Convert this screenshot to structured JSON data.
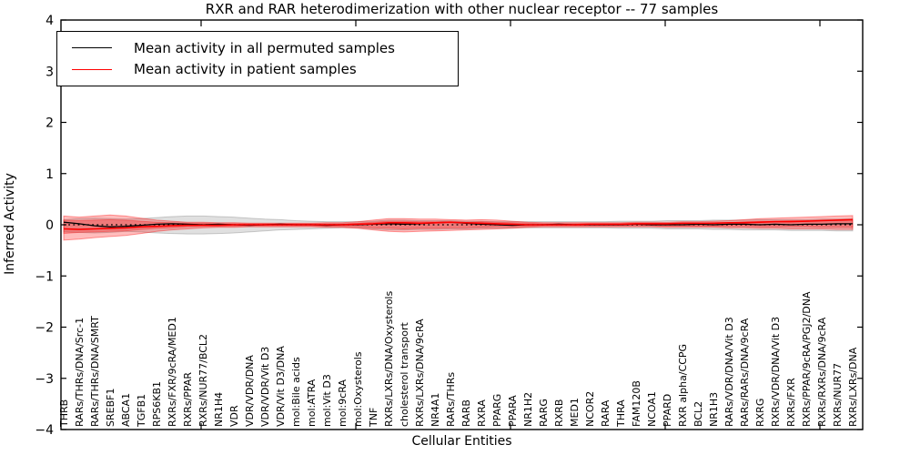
{
  "figure": {
    "title": "RXR and RAR heterodimerization with other nuclear receptor -- 77 samples"
  },
  "legend": {
    "items": [
      {
        "label": "Mean activity in all permuted samples",
        "color": "#000000"
      },
      {
        "label": "Mean activity in patient samples",
        "color": "#ff0000"
      }
    ]
  },
  "chart_data": {
    "type": "line",
    "title": "RXR and RAR heterodimerization with other nuclear receptor -- 77 samples",
    "xlabel": "Cellular Entities",
    "ylabel": "Inferred Activity",
    "ylim": [
      -4,
      4
    ],
    "yticks": [
      4,
      3,
      2,
      1,
      0,
      -1,
      -2,
      -3,
      -4
    ],
    "grid": false,
    "legend_position": "upper left",
    "categories": [
      "THRB",
      "RARs/THRs/DNA/Src-1",
      "RARs/THRs/DNA/SMRT",
      "SREBF1",
      "ABCA1",
      "TGFB1",
      "RPS6KB1",
      "RXRs/FXR/9cRA/MED1",
      "RXRs/PPAR",
      "RXRs/NUR77/BCL2",
      "NR1H4",
      "VDR",
      "VDR/VDR/DNA",
      "VDR/VDR/Vit D3",
      "VDR/Vit D3/DNA",
      "mol:Bile acids",
      "mol:ATRA",
      "mol:Vit D3",
      "mol:9cRA",
      "mol:Oxysterols",
      "TNF",
      "RXRs/LXRs/DNA/Oxysterols",
      "cholesterol transport",
      "RXRs/LXRs/DNA/9cRA",
      "NR4A1",
      "RARs/THRs",
      "RARB",
      "RXRA",
      "PPARG",
      "PPARA",
      "NR1H2",
      "RARG",
      "RXRB",
      "MED1",
      "NCOR2",
      "RARA",
      "THRA",
      "FAM120B",
      "NCOA1",
      "PPARD",
      "RXR alpha/CCPG",
      "BCL2",
      "NR1H3",
      "RARs/VDR/DNA/Vit D3",
      "RARs/RARs/DNA/9cRA",
      "RXRG",
      "RXRs/VDR/DNA/Vit D3",
      "RXRs/FXR",
      "RXRs/PPAR/9cRA/PGJ2/DNA",
      "RXRs/RXRs/DNA/9cRA",
      "RXRs/NUR77",
      "RXRs/LXRs/DNA"
    ],
    "series": [
      {
        "name": "Mean activity in all permuted samples",
        "color": "#000000",
        "style": "solid",
        "values": [
          0.05,
          0.02,
          -0.02,
          -0.04,
          -0.03,
          -0.01,
          0.01,
          0.02,
          0.01,
          0.0,
          0.01,
          0.0,
          -0.01,
          0.0,
          0.01,
          0.0,
          0.0,
          -0.01,
          0.0,
          0.0,
          0.01,
          0.02,
          0.01,
          0.02,
          0.04,
          0.05,
          0.03,
          0.01,
          0.0,
          -0.01,
          0.0,
          0.0,
          0.01,
          0.0,
          0.0,
          0.0,
          0.0,
          0.01,
          0.0,
          0.0,
          0.0,
          0.01,
          0.0,
          0.01,
          0.01,
          0.0,
          0.01,
          0.0,
          0.01,
          0.01,
          0.02,
          0.02
        ]
      },
      {
        "name": "Mean activity in patient samples",
        "color": "#ff0000",
        "style": "solid",
        "values": [
          -0.08,
          -0.09,
          -0.08,
          -0.07,
          -0.06,
          -0.04,
          -0.03,
          -0.02,
          -0.01,
          -0.01,
          -0.01,
          0.0,
          0.0,
          0.0,
          0.0,
          0.0,
          0.0,
          0.0,
          0.0,
          0.01,
          0.02,
          0.04,
          0.04,
          0.03,
          0.04,
          0.05,
          0.04,
          0.03,
          0.02,
          0.01,
          0.0,
          0.0,
          0.0,
          0.0,
          0.01,
          0.01,
          0.01,
          0.02,
          0.02,
          0.02,
          0.03,
          0.03,
          0.03,
          0.04,
          0.04,
          0.05,
          0.06,
          0.06,
          0.07,
          0.08,
          0.09,
          0.1
        ]
      }
    ],
    "reference_line": {
      "y": 0,
      "style": "dotted",
      "color": "#000000"
    },
    "bands": [
      {
        "name": "permuted-range",
        "fill": "rgba(0,0,0,0.12)",
        "edge": "rgba(0,0,0,0.18)",
        "hi": [
          0.1,
          0.12,
          0.13,
          0.12,
          0.11,
          0.12,
          0.14,
          0.16,
          0.17,
          0.17,
          0.16,
          0.15,
          0.13,
          0.11,
          0.1,
          0.08,
          0.07,
          0.06,
          0.06,
          0.06,
          0.07,
          0.09,
          0.09,
          0.08,
          0.08,
          0.08,
          0.07,
          0.07,
          0.06,
          0.06,
          0.06,
          0.06,
          0.06,
          0.06,
          0.06,
          0.06,
          0.07,
          0.07,
          0.07,
          0.08,
          0.08,
          0.08,
          0.09,
          0.09,
          0.09,
          0.1,
          0.1,
          0.1,
          0.1,
          0.11,
          0.11,
          0.12
        ],
        "lo": [
          -0.14,
          -0.15,
          -0.16,
          -0.15,
          -0.13,
          -0.14,
          -0.16,
          -0.17,
          -0.18,
          -0.18,
          -0.17,
          -0.16,
          -0.14,
          -0.12,
          -0.1,
          -0.09,
          -0.08,
          -0.07,
          -0.06,
          -0.06,
          -0.08,
          -0.1,
          -0.1,
          -0.09,
          -0.09,
          -0.08,
          -0.08,
          -0.07,
          -0.07,
          -0.06,
          -0.06,
          -0.06,
          -0.06,
          -0.06,
          -0.06,
          -0.06,
          -0.07,
          -0.07,
          -0.07,
          -0.08,
          -0.08,
          -0.08,
          -0.09,
          -0.09,
          -0.1,
          -0.1,
          -0.1,
          -0.11,
          -0.11,
          -0.11,
          -0.12,
          -0.12
        ]
      },
      {
        "name": "patient-range",
        "fill": "rgba(255,0,0,0.26)",
        "edge": "rgba(255,0,0,0.38)",
        "hi": [
          0.17,
          0.15,
          0.17,
          0.19,
          0.17,
          0.13,
          0.09,
          0.07,
          0.05,
          0.05,
          0.04,
          0.04,
          0.03,
          0.03,
          0.03,
          0.03,
          0.03,
          0.04,
          0.04,
          0.06,
          0.09,
          0.12,
          0.12,
          0.11,
          0.11,
          0.1,
          0.09,
          0.1,
          0.09,
          0.07,
          0.05,
          0.04,
          0.04,
          0.04,
          0.04,
          0.04,
          0.04,
          0.05,
          0.05,
          0.05,
          0.06,
          0.06,
          0.07,
          0.08,
          0.1,
          0.12,
          0.13,
          0.14,
          0.15,
          0.16,
          0.17,
          0.18
        ],
        "lo": [
          -0.3,
          -0.28,
          -0.25,
          -0.23,
          -0.21,
          -0.17,
          -0.13,
          -0.1,
          -0.08,
          -0.06,
          -0.05,
          -0.05,
          -0.04,
          -0.04,
          -0.04,
          -0.04,
          -0.04,
          -0.05,
          -0.05,
          -0.07,
          -0.1,
          -0.13,
          -0.14,
          -0.13,
          -0.12,
          -0.11,
          -0.1,
          -0.09,
          -0.08,
          -0.07,
          -0.05,
          -0.04,
          -0.04,
          -0.04,
          -0.04,
          -0.04,
          -0.04,
          -0.04,
          -0.04,
          -0.05,
          -0.05,
          -0.05,
          -0.05,
          -0.06,
          -0.06,
          -0.07,
          -0.07,
          -0.08,
          -0.08,
          -0.08,
          -0.09,
          -0.09
        ]
      },
      {
        "name": "patient-range-inner",
        "fill": "rgba(255,0,0,0.26)",
        "edge": "rgba(255,0,0,0.30)",
        "hi": [
          0.09,
          0.08,
          0.09,
          0.1,
          0.09,
          0.07,
          0.05,
          0.04,
          0.03,
          0.03,
          0.02,
          0.02,
          0.02,
          0.02,
          0.02,
          0.02,
          0.02,
          0.02,
          0.02,
          0.03,
          0.05,
          0.07,
          0.07,
          0.06,
          0.06,
          0.06,
          0.05,
          0.06,
          0.05,
          0.04,
          0.03,
          0.02,
          0.02,
          0.02,
          0.02,
          0.02,
          0.02,
          0.03,
          0.03,
          0.03,
          0.03,
          0.03,
          0.04,
          0.04,
          0.06,
          0.07,
          0.07,
          0.08,
          0.08,
          0.09,
          0.09,
          0.1
        ],
        "lo": [
          -0.17,
          -0.15,
          -0.14,
          -0.13,
          -0.12,
          -0.09,
          -0.07,
          -0.06,
          -0.04,
          -0.03,
          -0.03,
          -0.03,
          -0.02,
          -0.02,
          -0.02,
          -0.02,
          -0.02,
          -0.03,
          -0.03,
          -0.04,
          -0.06,
          -0.07,
          -0.08,
          -0.07,
          -0.07,
          -0.06,
          -0.06,
          -0.05,
          -0.04,
          -0.04,
          -0.03,
          -0.02,
          -0.02,
          -0.02,
          -0.02,
          -0.02,
          -0.02,
          -0.02,
          -0.02,
          -0.03,
          -0.03,
          -0.03,
          -0.03,
          -0.03,
          -0.03,
          -0.04,
          -0.04,
          -0.04,
          -0.04,
          -0.05,
          -0.05,
          -0.05
        ]
      }
    ]
  }
}
